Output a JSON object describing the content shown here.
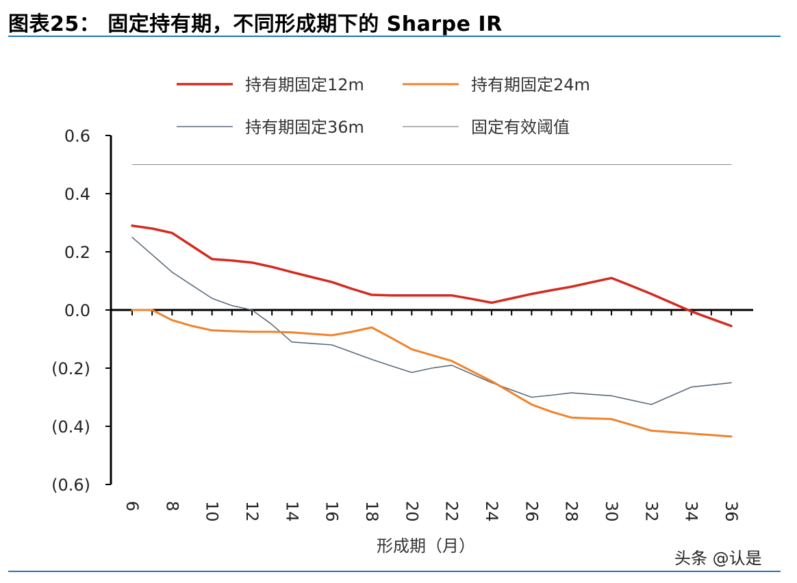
{
  "header": {
    "title": "图表25： 固定持有期，不同形成期下的 Sharpe IR"
  },
  "watermark": "头条 @认是",
  "chart_data": {
    "type": "line",
    "title": "图表25： 固定持有期，不同形成期下的 Sharpe IR",
    "xlabel": "形成期（月）",
    "ylabel": "",
    "x": [
      6,
      7,
      8,
      9,
      10,
      11,
      12,
      13,
      14,
      15,
      16,
      17,
      18,
      19,
      20,
      21,
      22,
      23,
      24,
      25,
      26,
      27,
      28,
      29,
      30,
      31,
      32,
      33,
      34,
      35,
      36
    ],
    "x_tick_labels": [
      "6",
      "8",
      "10",
      "12",
      "14",
      "16",
      "18",
      "20",
      "22",
      "24",
      "26",
      "28",
      "30",
      "32",
      "34",
      "36"
    ],
    "ylim": [
      -0.6,
      0.6
    ],
    "y_tick_values": [
      0.6,
      0.4,
      0.2,
      0.0,
      -0.2,
      -0.4,
      -0.6
    ],
    "y_tick_labels": [
      "0.6",
      "0.4",
      "0.2",
      "0.0",
      "(0.2)",
      "(0.4)",
      "(0.6)"
    ],
    "legend_position": "top",
    "grid": false,
    "series": [
      {
        "name": "持有期固定12m",
        "color": "#d42a20",
        "width": 3.5,
        "values": [
          0.29,
          0.28,
          0.265,
          0.22,
          0.175,
          0.17,
          0.163,
          0.148,
          0.13,
          0.113,
          0.096,
          0.073,
          0.052,
          0.05,
          0.05,
          0.05,
          0.05,
          0.038,
          0.025,
          0.04,
          0.055,
          0.068,
          0.08,
          0.095,
          0.11,
          0.083,
          0.055,
          0.025,
          -0.005,
          -0.03,
          -0.055
        ]
      },
      {
        "name": "持有期固定24m",
        "color": "#f0822a",
        "width": 3,
        "values": [
          0.0,
          0.0,
          -0.035,
          -0.055,
          -0.07,
          -0.073,
          -0.075,
          -0.075,
          -0.077,
          -0.082,
          -0.087,
          -0.075,
          -0.06,
          -0.097,
          -0.135,
          -0.155,
          -0.175,
          -0.21,
          -0.245,
          -0.285,
          -0.325,
          -0.35,
          -0.37,
          -0.373,
          -0.375,
          -0.395,
          -0.415,
          -0.42,
          -0.425,
          -0.43,
          -0.435
        ]
      },
      {
        "name": "持有期固定36m",
        "color": "#5a6a7a",
        "width": 1.6,
        "values": [
          0.25,
          0.19,
          0.13,
          0.085,
          0.04,
          0.015,
          0.0,
          -0.05,
          -0.11,
          -0.115,
          -0.12,
          -0.145,
          -0.17,
          -0.193,
          -0.215,
          -0.2,
          -0.19,
          -0.22,
          -0.25,
          -0.275,
          -0.3,
          -0.293,
          -0.285,
          -0.29,
          -0.295,
          -0.31,
          -0.325,
          -0.295,
          -0.265,
          -0.258,
          -0.25
        ]
      },
      {
        "name": "固定有效阈值",
        "color": "#888888",
        "width": 1,
        "values": [
          0.5,
          0.5,
          0.5,
          0.5,
          0.5,
          0.5,
          0.5,
          0.5,
          0.5,
          0.5,
          0.5,
          0.5,
          0.5,
          0.5,
          0.5,
          0.5,
          0.5,
          0.5,
          0.5,
          0.5,
          0.5,
          0.5,
          0.5,
          0.5,
          0.5,
          0.5,
          0.5,
          0.5,
          0.5,
          0.5,
          0.5
        ]
      }
    ]
  }
}
